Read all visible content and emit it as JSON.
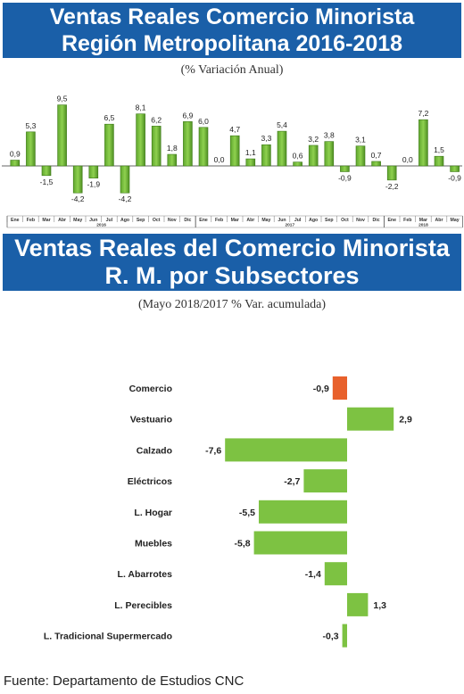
{
  "charts_header": {
    "title_line1": "Ventas Reales Comercio Minorista",
    "title_line2": "Región Metropolitana 2016-2018",
    "subtitle": "(% Variación Anual)"
  },
  "subsector_header": {
    "title_line1": "Ventas Reales del Comercio Minorista",
    "title_line2": "R. M.  por Subsectores",
    "subtitle": "(Mayo 2018/2017 % Var. acumulada)"
  },
  "footer": "Fuente: Departamento de Estudios CNC",
  "colors": {
    "banner": "#1a5fa8",
    "bar_green": "#7dc242",
    "bar_highlight": "#e8612c"
  },
  "chart_data": [
    {
      "type": "bar",
      "title": "Ventas Reales Comercio Minorista Región Metropolitana 2016-2018",
      "subtitle": "(% Variación Anual)",
      "categories": [
        "Ene",
        "Feb",
        "Mar",
        "Abr",
        "May",
        "Jun",
        "Jul",
        "Ago",
        "Sep",
        "Oct",
        "Nov",
        "Dic",
        "Ene",
        "Feb",
        "Mar",
        "Abr",
        "May",
        "Jun",
        "Jul",
        "Ago",
        "Sep",
        "Oct",
        "Nov",
        "Dic",
        "Ene",
        "Feb",
        "Mar",
        "Abr",
        "May"
      ],
      "values": [
        0.9,
        5.3,
        -1.5,
        9.5,
        -4.2,
        -1.9,
        6.5,
        -4.2,
        8.1,
        6.2,
        1.8,
        6.9,
        6.0,
        0.0,
        4.7,
        1.1,
        3.3,
        5.4,
        0.6,
        3.2,
        3.8,
        -0.9,
        3.1,
        0.7,
        -2.2,
        0.0,
        7.2,
        1.5,
        -0.9
      ],
      "value_labels": [
        "0,9",
        "5,3",
        "-1,5",
        "9,5",
        "-4,2",
        "-1,9",
        "6,5",
        "-4,2",
        "8,1",
        "6,2",
        "1,8",
        "6,9",
        "6,0",
        "0,0",
        "4,7",
        "1,1",
        "3,3",
        "5,4",
        "0,6",
        "3,2",
        "3,8",
        "-0,9",
        "3,1",
        "0,7",
        "-2,2",
        "0,0",
        "7,2",
        "1,5",
        "-0,9"
      ],
      "years": [
        {
          "label": "2016",
          "start": 0,
          "end": 11
        },
        {
          "label": "2017",
          "start": 12,
          "end": 23
        },
        {
          "label": "2018",
          "start": 24,
          "end": 28
        }
      ],
      "ylim": [
        -5,
        10
      ],
      "grid": false
    },
    {
      "type": "bar",
      "orientation": "horizontal",
      "title": "Ventas Reales del Comercio Minorista R. M. por Subsectores",
      "subtitle": "(Mayo 2018/2017 % Var. acumulada)",
      "categories": [
        "Comercio",
        "Vestuario",
        "Calzado",
        "Eléctricos",
        "L. Hogar",
        "Muebles",
        "L. Abarrotes",
        "L. Perecibles",
        "L. Tradicional Supermercado"
      ],
      "values": [
        -0.9,
        2.9,
        -7.6,
        -2.7,
        -5.5,
        -5.8,
        -1.4,
        1.3,
        -0.3
      ],
      "value_labels": [
        "-0,9",
        "2,9",
        "-7,6",
        "-2,7",
        "-5,5",
        "-5,8",
        "-1,4",
        "1,3",
        "-0,3"
      ],
      "highlight": "Comercio",
      "xlim": [
        -8,
        3.5
      ],
      "grid": false
    }
  ]
}
